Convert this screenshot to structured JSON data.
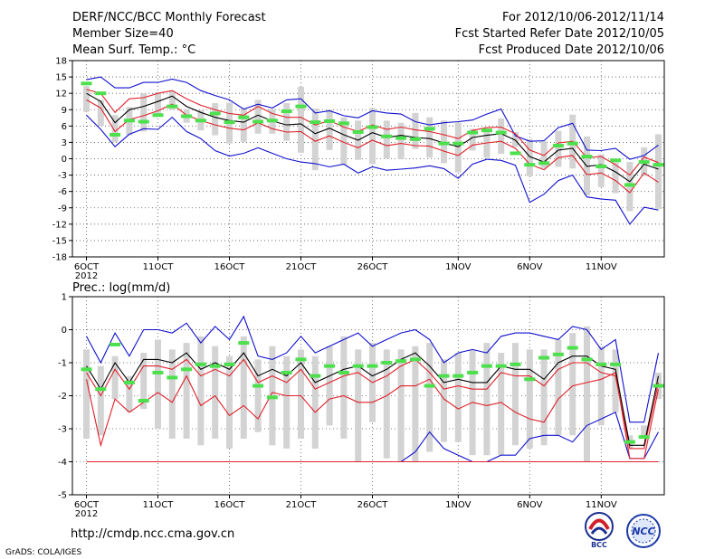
{
  "header": {
    "title": "DERF/NCC/BCC Monthly Forecast",
    "member_size": "Member Size=40",
    "variable": "Mean Surf. Temp.: °C",
    "period": "For 2012/10/06-2012/11/14",
    "started": "Fcst Started Refer Date 2012/10/05",
    "produced": "Fcst Produced Date 2012/10/06"
  },
  "footer": {
    "url": "http://cmdp.ncc.cma.gov.cn",
    "credit": "GrADS: COLA/IGES",
    "logo_bcc": "BCC",
    "logo_ncc": "NCC"
  },
  "colors": {
    "box": "#d3d3d3",
    "mean": "#000000",
    "spread_inner": "#e0202a",
    "spread_outer": "#1010d0",
    "median": "#4ce04c",
    "grid": "#555555"
  },
  "chart_data": [
    {
      "type": "line",
      "title": "Mean Surf. Temp.: °C",
      "ylim": [
        -18,
        18
      ],
      "yticks": [
        -18,
        -15,
        -12,
        -9,
        -6,
        -3,
        0,
        3,
        6,
        9,
        12,
        15,
        18
      ],
      "xticks": [
        {
          "day": 1,
          "label": "6OCT"
        },
        {
          "day": 6,
          "label": "11OCT"
        },
        {
          "day": 11,
          "label": "16OCT"
        },
        {
          "day": 16,
          "label": "21OCT"
        },
        {
          "day": 21,
          "label": "26OCT"
        },
        {
          "day": 27,
          "label": "1NOV"
        },
        {
          "day": 32,
          "label": "6NOV"
        },
        {
          "day": 37,
          "label": "11NOV"
        }
      ],
      "xyear": "2012",
      "series": [
        {
          "name": "mean",
          "values": [
            12,
            10.5,
            6.6,
            9,
            9.6,
            10.5,
            11.5,
            9.6,
            8.5,
            7.6,
            7,
            6.7,
            8,
            6.9,
            6.2,
            6.4,
            4.6,
            5.6,
            4.4,
            3.4,
            4.8,
            3.9,
            4.3,
            3.9,
            3.7,
            2.9,
            2.2,
            3.9,
            4.3,
            4.6,
            3.4,
            0.4,
            -0.6,
            1.6,
            1.9,
            -1.4,
            -1.1,
            -2.4,
            -4.2,
            -1,
            -1.9
          ]
        },
        {
          "name": "upper_inner",
          "values": [
            12.7,
            12,
            8.5,
            11,
            11.2,
            12,
            12.5,
            11,
            9.8,
            9,
            8.3,
            8,
            9.6,
            8.3,
            7.6,
            7.6,
            6.2,
            7,
            5.8,
            5,
            6.2,
            5.4,
            5.8,
            5.3,
            5,
            4.4,
            3.7,
            5.2,
            5.7,
            5.8,
            4.6,
            1.6,
            0.6,
            2.9,
            3.2,
            0.2,
            0.4,
            -1.1,
            -3,
            0.3,
            -0.7
          ]
        },
        {
          "name": "lower_inner",
          "values": [
            10.8,
            9.3,
            5,
            7.2,
            7.9,
            8.8,
            10,
            8,
            7,
            6.2,
            5.6,
            5.3,
            6.6,
            5.5,
            4.9,
            5,
            3.2,
            4.2,
            3,
            2,
            3.4,
            2.4,
            2.8,
            2.4,
            2.3,
            1.4,
            0.6,
            2.5,
            2.9,
            3.2,
            1.9,
            -1,
            -2,
            0.2,
            0.6,
            -2.9,
            -2.6,
            -4,
            -6.2,
            -2.6,
            -4.3
          ]
        },
        {
          "name": "upper_outer",
          "values": [
            14.5,
            15,
            13,
            13,
            14,
            14,
            14.6,
            14,
            12.5,
            11.6,
            10.8,
            9.1,
            10,
            9.3,
            10.8,
            11,
            8.4,
            8.8,
            7.9,
            7.5,
            8.8,
            8.4,
            8.2,
            6.8,
            6.2,
            6.6,
            6.8,
            7.1,
            8.2,
            9.1,
            4.2,
            3.2,
            3.3,
            5.7,
            6.5,
            1.6,
            1.5,
            1.9,
            -0.1,
            0.6,
            2.5
          ]
        },
        {
          "name": "lower_outer",
          "values": [
            8,
            5.4,
            2.2,
            4.5,
            5.5,
            5.4,
            7.6,
            5,
            3.7,
            1.5,
            0.5,
            1,
            2,
            1,
            0,
            -0.6,
            -0.9,
            -1.5,
            -1,
            -2.6,
            -1.5,
            -2.1,
            -1.9,
            -1.7,
            -1.3,
            -1.8,
            -3.6,
            -1,
            -0.1,
            -0.3,
            -1.2,
            -8,
            -6.5,
            -4,
            -3,
            -7,
            -7.4,
            -7.6,
            -12,
            -8.9,
            -9.4
          ]
        },
        {
          "name": "box_top",
          "values": [
            13.3,
            10.8,
            8,
            9.5,
            12,
            12.2,
            12.4,
            9.1,
            8.9,
            10.2,
            10.3,
            9.2,
            10.8,
            9.1,
            10.2,
            13.2,
            9.2,
            9,
            7.6,
            7,
            9.3,
            7,
            6.6,
            8.4,
            7.6,
            7,
            6.6,
            5.5,
            4.9,
            7.4,
            4.9,
            3.6,
            3.2,
            5.1,
            8.1,
            4.1,
            0.8,
            -0.7,
            -0.6,
            2.1,
            4.5
          ]
        },
        {
          "name": "box_bottom",
          "values": [
            8.6,
            6,
            3,
            4.3,
            5,
            7.7,
            9,
            6.6,
            5.2,
            4.3,
            2.8,
            3.1,
            4.6,
            4.6,
            3.3,
            1.1,
            -2.1,
            1.6,
            -1.1,
            -0.2,
            -1,
            0,
            -0.1,
            1.8,
            0.2,
            -0.8,
            -2.5,
            1.5,
            0.2,
            0.9,
            2.2,
            -3.2,
            -1.7,
            -1.5,
            -1.8,
            -6.7,
            -5.2,
            -6.3,
            -9.6,
            -3.2,
            -9.2
          ]
        },
        {
          "name": "median",
          "values": [
            13.8,
            12,
            4.4,
            7,
            6.8,
            8,
            9.6,
            7.8,
            7,
            8.3,
            6.7,
            7.6,
            6.8,
            7,
            8.7,
            9.6,
            6.7,
            6.9,
            6.5,
            4.9,
            5.8,
            4.1,
            3.8,
            3.6,
            5.5,
            2.8,
            2.8,
            4.8,
            5.2,
            4.8,
            1,
            -1.1,
            -0.8,
            2.4,
            2.8,
            0.4,
            -1.4,
            -0.3,
            -4.8,
            -0.6,
            -1.1
          ]
        }
      ]
    },
    {
      "type": "line",
      "title": "Prec.: log(mm/d)",
      "ylim": [
        -5,
        1
      ],
      "yticks": [
        -5,
        -4,
        -3,
        -2,
        -1,
        0,
        1
      ],
      "xticks": [
        {
          "day": 1,
          "label": "6OCT"
        },
        {
          "day": 6,
          "label": "11OCT"
        },
        {
          "day": 11,
          "label": "16OCT"
        },
        {
          "day": 16,
          "label": "21OCT"
        },
        {
          "day": 21,
          "label": "26OCT"
        },
        {
          "day": 27,
          "label": "1NOV"
        },
        {
          "day": 32,
          "label": "6NOV"
        },
        {
          "day": 37,
          "label": "11NOV"
        }
      ],
      "xyear": "2012",
      "series": [
        {
          "name": "mean",
          "values": [
            -1.1,
            -1.8,
            -1,
            -1.6,
            -0.9,
            -0.9,
            -1,
            -0.7,
            -1.2,
            -1,
            -1.2,
            -0.7,
            -1.4,
            -1.2,
            -1.4,
            -1,
            -1.6,
            -1.4,
            -1.2,
            -1.1,
            -1.4,
            -1.2,
            -0.9,
            -0.7,
            -1.1,
            -1.6,
            -1.5,
            -1.6,
            -1.6,
            -1.1,
            -1.2,
            -1.2,
            -1.5,
            -1,
            -0.8,
            -0.8,
            -1.1,
            -1.2,
            -3.5,
            -3.5,
            -1.4
          ]
        },
        {
          "name": "upper_inner",
          "values": [
            -1.3,
            -2,
            -1.2,
            -1.8,
            -1.1,
            -1.1,
            -1.2,
            -0.9,
            -1.4,
            -1.2,
            -1.4,
            -0.9,
            -1.6,
            -1.4,
            -1.6,
            -1.2,
            -1.8,
            -1.6,
            -1.4,
            -1.3,
            -1.6,
            -1.4,
            -1.1,
            -0.9,
            -1.3,
            -1.8,
            -1.7,
            -1.8,
            -1.8,
            -1.3,
            -1.4,
            -1.4,
            -1.7,
            -1.2,
            -1,
            -1,
            -1.3,
            -1.4,
            -3.6,
            -3.6,
            -1.6
          ]
        },
        {
          "name": "lower_inner",
          "values": [
            -1.5,
            -3.5,
            -2.1,
            -2.5,
            -2.2,
            -1.9,
            -2.2,
            -1.4,
            -2.3,
            -2,
            -2.6,
            -2.3,
            -2.7,
            -1.9,
            -2,
            -2,
            -2.5,
            -2.1,
            -2,
            -2.2,
            -2.2,
            -2,
            -1.7,
            -1.7,
            -1.5,
            -2.1,
            -2.4,
            -2.2,
            -2.3,
            -2.2,
            -2.5,
            -2.7,
            -2.8,
            -2.1,
            -1.7,
            -1.6,
            -1.5,
            -1.3,
            -3.9,
            -3.9,
            -1.8
          ]
        },
        {
          "name": "upper_outer",
          "values": [
            -0.2,
            -1,
            -0.1,
            -0.8,
            0,
            0,
            -0.1,
            0.2,
            -0.4,
            0.1,
            -0.3,
            0.4,
            -0.8,
            -0.9,
            -0.7,
            -0.2,
            -0.7,
            -0.5,
            -0.3,
            -0.1,
            -0.5,
            -0.3,
            -0.1,
            0,
            -0.3,
            -1,
            -0.7,
            -0.6,
            -0.7,
            -0.2,
            -0.1,
            -0.1,
            -0.2,
            -0.3,
            0.1,
            0,
            -0.6,
            -0.3,
            -2.8,
            -2.8,
            -0.7
          ]
        },
        {
          "name": "lower_outer",
          "values": [
            -4,
            -4,
            -4,
            -4,
            -4,
            -4,
            -4,
            -4,
            -4,
            -4,
            -4,
            -4,
            -4,
            -4,
            -4,
            -4,
            -4,
            -4,
            -4,
            -4,
            -4,
            -4,
            -4,
            -3.7,
            -3.1,
            -3.6,
            -3.8,
            -4,
            -4,
            -3.8,
            -3.8,
            -3.3,
            -3.2,
            -3.2,
            -3.4,
            -2.9,
            -2.7,
            -2.5,
            -3.9,
            -3.9,
            -3.1
          ]
        },
        {
          "name": "box_top",
          "values": [
            -0.6,
            -1.1,
            -0.8,
            -1.4,
            -0.7,
            -0.3,
            -0.6,
            -0.4,
            -0.2,
            -0.5,
            -0.8,
            -0.2,
            -0.9,
            -0.5,
            -0.8,
            -0.6,
            -0.8,
            -0.5,
            -0.2,
            -0.6,
            -0.4,
            -0.6,
            -0.6,
            -0.5,
            -0.4,
            -0.9,
            -0.7,
            -0.6,
            -0.4,
            -0.7,
            -0.4,
            -0.6,
            -0.6,
            -0.3,
            -0.1,
            0.1,
            -0.5,
            -0.6,
            -3.2,
            -2.9,
            -1.3
          ]
        },
        {
          "name": "box_bottom",
          "values": [
            -3.3,
            -3.2,
            -2.1,
            -2.5,
            -2.4,
            -3,
            -3.3,
            -3.3,
            -3.5,
            -3.3,
            -3.6,
            -3.3,
            -3.1,
            -3.5,
            -3.6,
            -3.3,
            -3.6,
            -2.9,
            -3.3,
            -4,
            -2.8,
            -3.9,
            -4,
            -4,
            -3.7,
            -3.4,
            -3.4,
            -3.8,
            -3.8,
            -3.8,
            -3.5,
            -3.6,
            -3.5,
            -3.2,
            -3.2,
            -4,
            -2.9,
            -2.5,
            -3.6,
            -3.3,
            -2.1
          ]
        },
        {
          "name": "median",
          "values": [
            -1.2,
            -1.8,
            -0.45,
            -1.6,
            -2.15,
            -1.3,
            -1.45,
            -1.2,
            -1.05,
            -1.1,
            -1.05,
            -0.4,
            -1.7,
            -2.05,
            -1.3,
            -0.9,
            -1.4,
            -1.1,
            -1.3,
            -1.1,
            -1.1,
            -1,
            -0.95,
            -0.9,
            -1.7,
            -1.4,
            -1.4,
            -1.3,
            -1.1,
            -1.1,
            -1.05,
            -1.5,
            -0.85,
            -0.75,
            -0.55,
            -0.9,
            -1.05,
            -1.05,
            -3.4,
            -3.25,
            -1.7
          ]
        }
      ]
    }
  ]
}
